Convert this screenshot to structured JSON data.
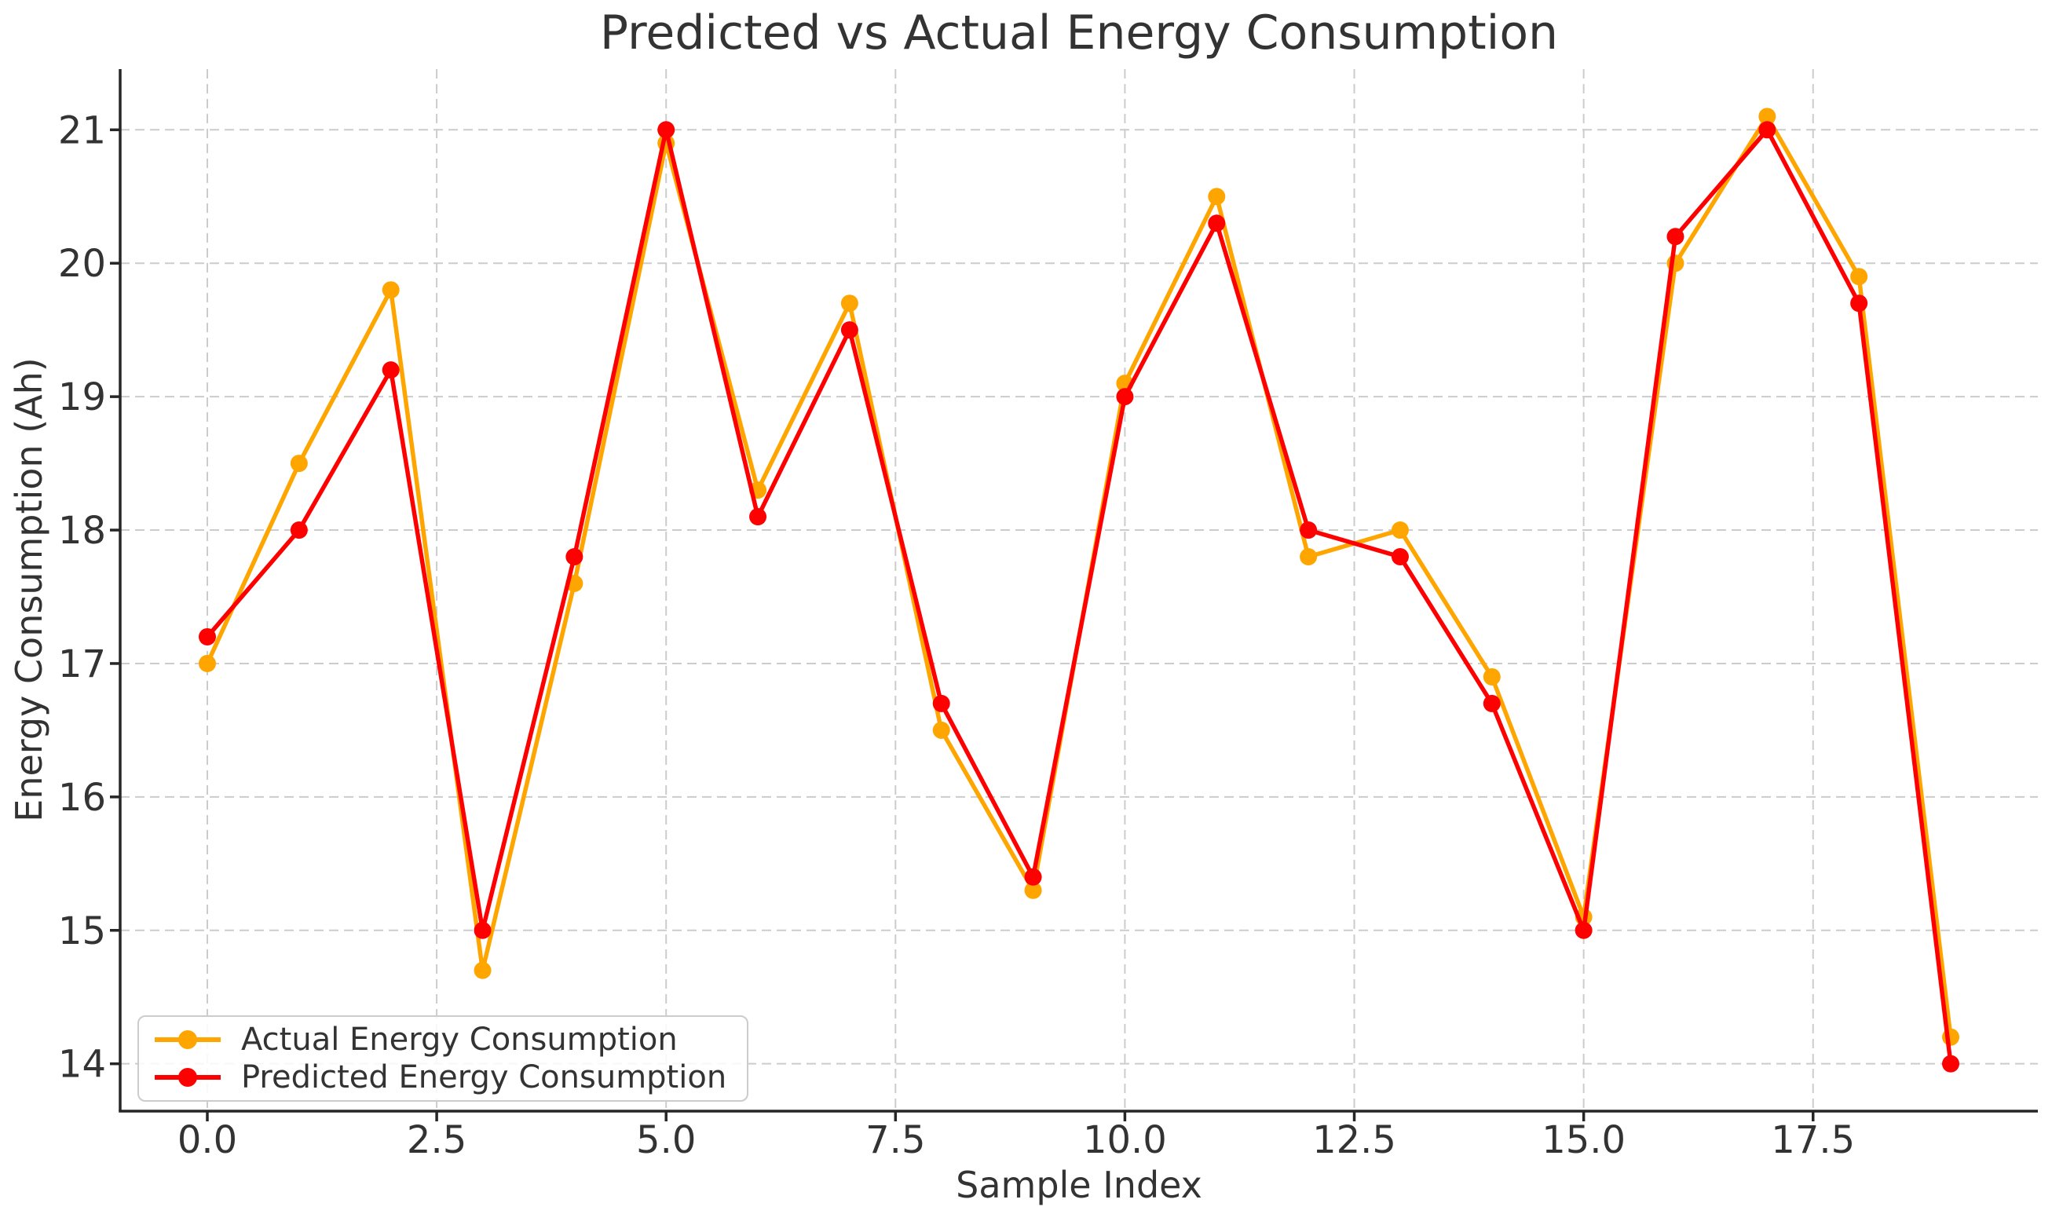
{
  "chart_data": {
    "type": "line",
    "title": "Predicted vs Actual Energy Consumption",
    "xlabel": "Sample Index",
    "ylabel": "Energy Consumption (Ah)",
    "x": [
      0,
      1,
      2,
      3,
      4,
      5,
      6,
      7,
      8,
      9,
      10,
      11,
      12,
      13,
      14,
      15,
      16,
      17,
      18,
      19
    ],
    "series": [
      {
        "name": "Actual Energy Consumption",
        "color": "#FFA500",
        "values": [
          17.0,
          18.5,
          19.8,
          14.7,
          17.6,
          20.9,
          18.3,
          19.7,
          16.5,
          15.3,
          19.1,
          20.5,
          17.8,
          18.0,
          16.9,
          15.1,
          20.0,
          21.1,
          19.9,
          14.2
        ]
      },
      {
        "name": "Predicted Energy Consumption",
        "color": "#FF0000",
        "values": [
          17.2,
          18.0,
          19.2,
          15.0,
          17.8,
          21.0,
          18.1,
          19.5,
          16.7,
          15.4,
          19.0,
          20.3,
          18.0,
          17.8,
          16.7,
          15.0,
          20.2,
          21.0,
          19.7,
          14.0
        ]
      }
    ],
    "xlim": [
      -0.95,
      19.95
    ],
    "ylim": [
      13.645,
      21.455
    ],
    "xticks": {
      "values": [
        0,
        2.5,
        5,
        7.5,
        10,
        12.5,
        15,
        17.5
      ],
      "labels": [
        "0.0",
        "2.5",
        "5.0",
        "7.5",
        "10.0",
        "12.5",
        "15.0",
        "17.5"
      ]
    },
    "yticks": {
      "values": [
        14,
        15,
        16,
        17,
        18,
        19,
        20,
        21
      ],
      "labels": [
        "14",
        "15",
        "16",
        "17",
        "18",
        "19",
        "20",
        "21"
      ]
    },
    "grid": true,
    "legend_position": "lower left"
  },
  "colors": {
    "background": "#ffffff",
    "grid": "#cccccc",
    "spine": "#262626",
    "text": "#333333",
    "actual": "#FFA500",
    "predicted": "#FF0000",
    "legend_border": "#cccccc"
  }
}
